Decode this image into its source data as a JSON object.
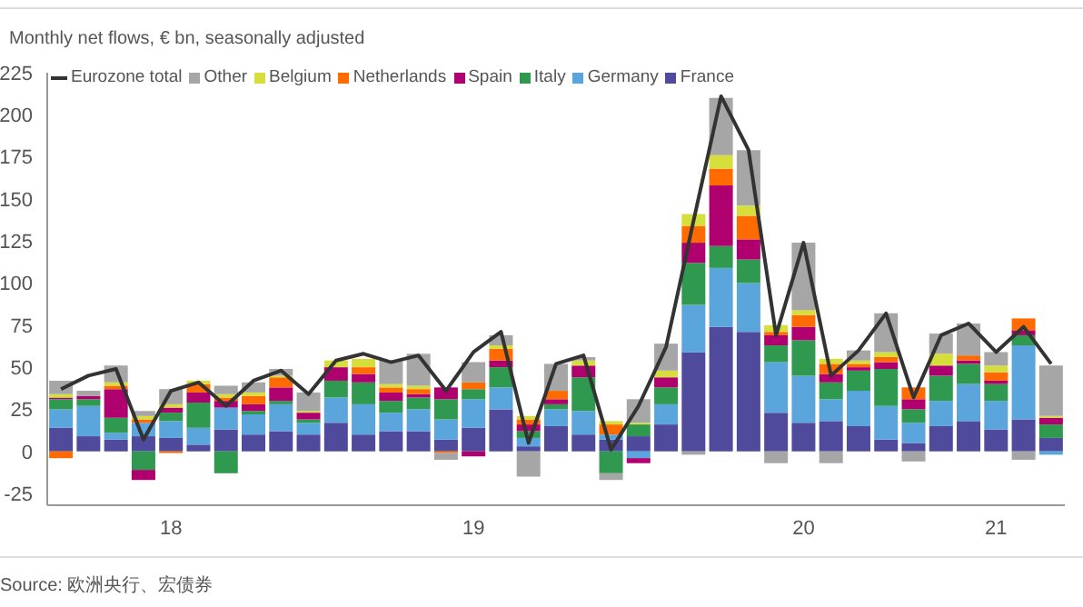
{
  "chart_data": {
    "type": "bar",
    "title": "Monthly net flows, € bn, seasonally adjusted",
    "annotations": [
      "Source: 欧洲央行、宏债券"
    ],
    "categories": [
      null,
      null,
      null,
      null,
      "18",
      null,
      null,
      null,
      null,
      null,
      null,
      null,
      null,
      null,
      null,
      "19",
      null,
      null,
      null,
      null,
      null,
      null,
      null,
      null,
      null,
      null,
      null,
      "20",
      null,
      null,
      null,
      null,
      null,
      null,
      "21",
      null,
      null
    ],
    "stacked": true,
    "legend": "top",
    "ylim": [
      -32,
      225
    ],
    "yticks": [
      -25,
      0,
      25,
      50,
      75,
      100,
      125,
      150,
      175,
      200,
      225
    ],
    "series": [
      {
        "name": "France",
        "color": "#4f4a9c",
        "values": [
          14,
          9,
          7,
          9,
          8,
          4,
          13,
          10,
          12,
          10,
          17,
          10,
          12,
          12,
          7,
          14,
          25,
          3,
          15,
          10,
          7,
          9,
          16,
          59,
          74,
          71,
          23,
          17,
          18,
          15,
          7,
          5,
          15,
          18,
          13,
          19,
          8
        ]
      },
      {
        "name": "Germany",
        "color": "#5aa5dc",
        "values": [
          11,
          18,
          4,
          8,
          10,
          10,
          13,
          12,
          16,
          7,
          15,
          18,
          11,
          13,
          12,
          17,
          13,
          5,
          10,
          14,
          3,
          -4,
          12,
          28,
          35,
          29,
          30,
          28,
          13,
          21,
          20,
          12,
          15,
          22,
          17,
          44,
          -2
        ]
      },
      {
        "name": "Italy",
        "color": "#2f9a4f",
        "values": [
          6,
          4,
          9,
          -11,
          5,
          15,
          -13,
          2,
          2,
          2,
          10,
          13,
          7,
          7,
          12,
          6,
          12,
          4,
          3,
          20,
          -13,
          7,
          10,
          25,
          13,
          14,
          10,
          21,
          10,
          12,
          22,
          8,
          15,
          12,
          10,
          6,
          8
        ]
      },
      {
        "name": "Spain",
        "color": "#b0006f",
        "values": [
          1,
          2,
          17,
          -6,
          3,
          6,
          4,
          4,
          8,
          4,
          8,
          5,
          5,
          2,
          7,
          -3,
          4,
          4,
          3,
          7,
          0,
          -3,
          6,
          12,
          36,
          12,
          6,
          8,
          5,
          2,
          4,
          6,
          6,
          2,
          2,
          3,
          4
        ]
      },
      {
        "name": "Netherlands",
        "color": "#ff6b00",
        "values": [
          -4,
          0,
          2,
          2,
          -1,
          5,
          2,
          5,
          6,
          0,
          0,
          4,
          3,
          3,
          -1,
          4,
          7,
          3,
          5,
          0,
          6,
          0,
          0,
          10,
          10,
          14,
          2,
          7,
          6,
          2,
          3,
          7,
          0,
          3,
          5,
          7,
          0
        ]
      },
      {
        "name": "Belgium",
        "color": "#d5de3b",
        "values": [
          2,
          0,
          2,
          2,
          2,
          2,
          2,
          2,
          1,
          1,
          4,
          5,
          2,
          2,
          0,
          0,
          2,
          2,
          0,
          3,
          2,
          1,
          4,
          7,
          8,
          6,
          4,
          3,
          3,
          2,
          3,
          0,
          7,
          0,
          4,
          0,
          1
        ]
      },
      {
        "name": "Other",
        "color": "#a6a6a6",
        "values": [
          8,
          3,
          10,
          3,
          9,
          0,
          5,
          6,
          4,
          11,
          0,
          0,
          14,
          19,
          -4,
          12,
          6,
          -15,
          16,
          2,
          -4,
          14,
          16,
          -2,
          34,
          33,
          -7,
          40,
          -7,
          6,
          23,
          -6,
          12,
          19,
          8,
          -5,
          30
        ]
      },
      {
        "name": "Eurozone total",
        "type": "line",
        "color": "#333333",
        "values": [
          37,
          45,
          49,
          7,
          36,
          41,
          27,
          42,
          48,
          34,
          54,
          58,
          53,
          57,
          36,
          59,
          71,
          5,
          52,
          57,
          1,
          27,
          62,
          137,
          211,
          179,
          69,
          124,
          45,
          60,
          82,
          32,
          69,
          76,
          59,
          74,
          52
        ]
      }
    ]
  }
}
